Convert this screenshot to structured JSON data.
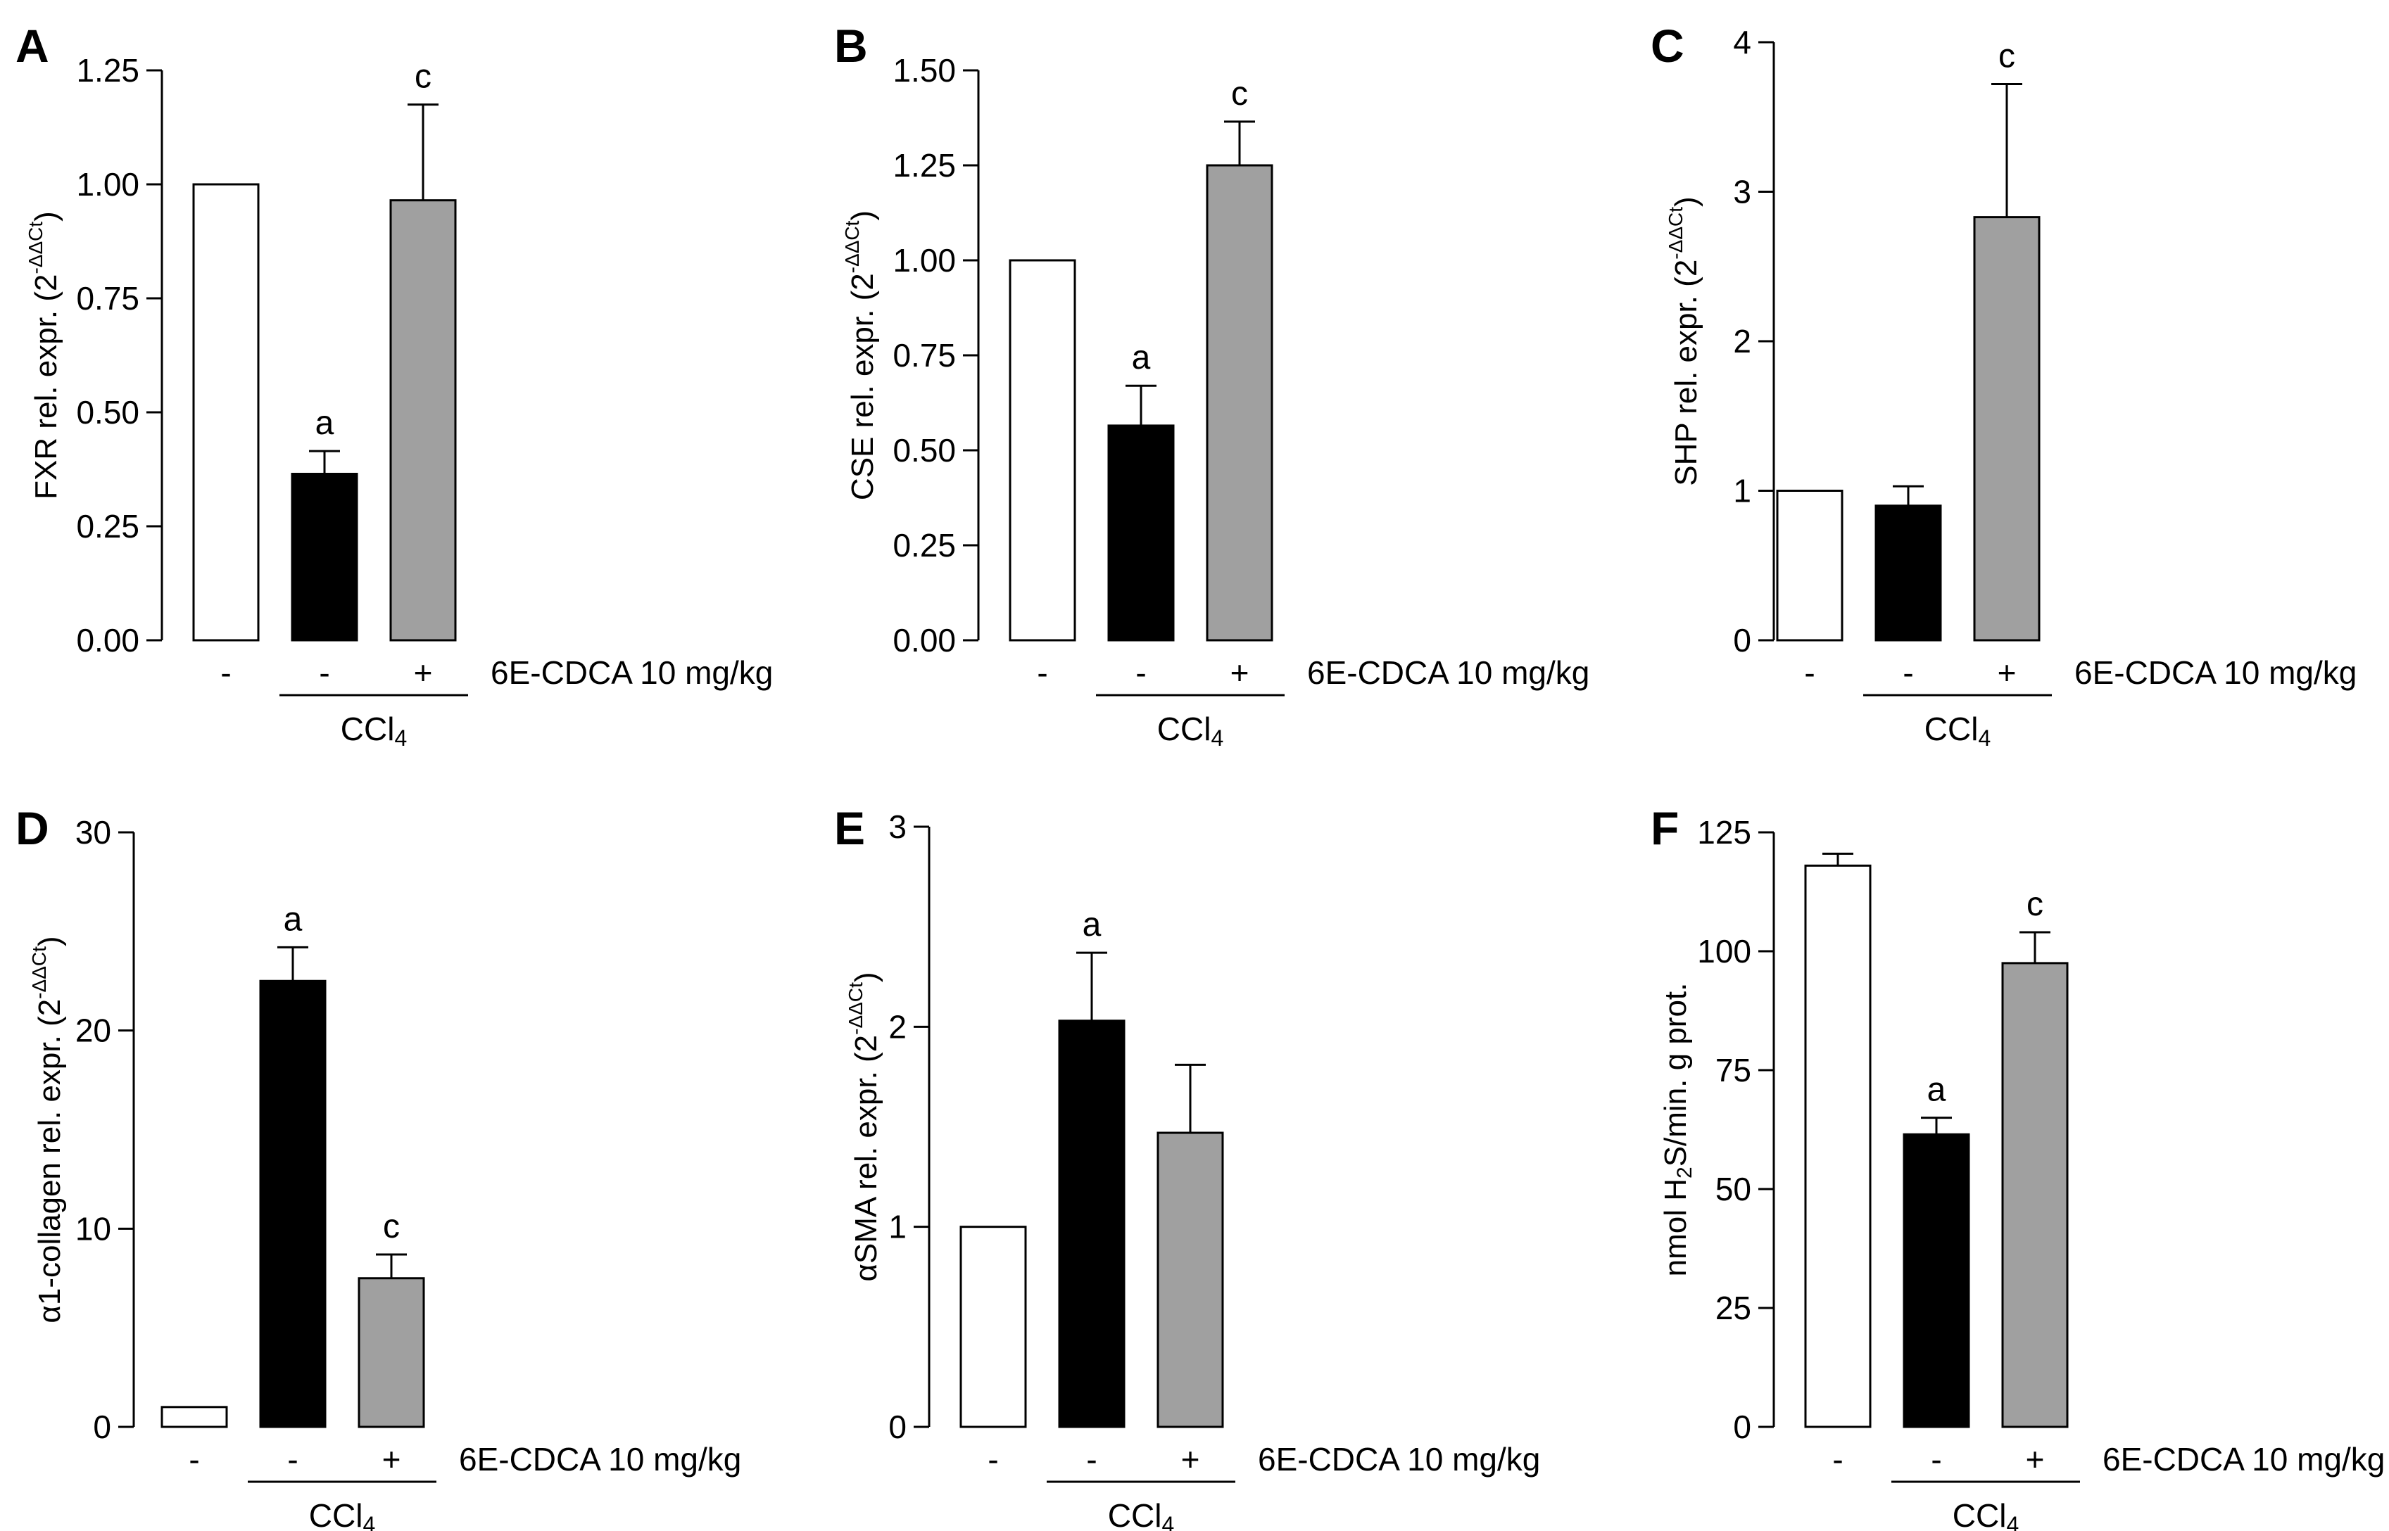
{
  "chart_data": [
    {
      "type": "bar",
      "panel": "A",
      "ylabel": "FXR rel. expr. (2",
      "ylabel_sup": "-ΔΔCt",
      "ylabel_end": ")",
      "ylim": [
        0,
        1.25
      ],
      "yticks": [
        "0.00",
        "0.25",
        "0.50",
        "0.75",
        "1.00",
        "1.25"
      ],
      "categories": [
        "-",
        "-",
        "+"
      ],
      "values": [
        1.0,
        0.365,
        0.965
      ],
      "errors": [
        0,
        0.05,
        0.21
      ],
      "sig": [
        "",
        "a",
        "c"
      ],
      "treatment_label": "6E-CDCA 10 mg/kg",
      "group_label": "CCl4"
    },
    {
      "type": "bar",
      "panel": "B",
      "ylabel": "CSE rel. expr. (2",
      "ylabel_sup": "-ΔΔCt",
      "ylabel_end": ")",
      "ylim": [
        0,
        1.5
      ],
      "yticks": [
        "0.00",
        "0.25",
        "0.50",
        "0.75",
        "1.00",
        "1.25",
        "1.50"
      ],
      "categories": [
        "-",
        "-",
        "+"
      ],
      "values": [
        1.0,
        0.565,
        1.25
      ],
      "errors": [
        0,
        0.105,
        0.115
      ],
      "sig": [
        "",
        "a",
        "c"
      ],
      "treatment_label": "6E-CDCA 10 mg/kg",
      "group_label": "CCl4"
    },
    {
      "type": "bar",
      "panel": "C",
      "ylabel": "SHP rel. expr. (2",
      "ylabel_sup": "-ΔΔCt",
      "ylabel_end": ")",
      "ylim": [
        0,
        4
      ],
      "yticks": [
        "0",
        "1",
        "2",
        "3",
        "4"
      ],
      "categories": [
        "-",
        "-",
        "+"
      ],
      "values": [
        1.0,
        0.9,
        2.83
      ],
      "errors": [
        0,
        0.13,
        0.89
      ],
      "sig": [
        "",
        "",
        "c"
      ],
      "treatment_label": "6E-CDCA 10 mg/kg",
      "group_label": "CCl4"
    },
    {
      "type": "bar",
      "panel": "D",
      "ylabel": "α1-collagen rel. expr. (2",
      "ylabel_sup": "-ΔΔCt",
      "ylabel_end": ")",
      "ylim": [
        0,
        30
      ],
      "yticks": [
        "0",
        "10",
        "20",
        "30"
      ],
      "categories": [
        "-",
        "-",
        "+"
      ],
      "values": [
        1.0,
        22.5,
        7.5
      ],
      "errors": [
        0,
        1.7,
        1.2
      ],
      "sig": [
        "",
        "a",
        "c"
      ],
      "treatment_label": "6E-CDCA 10 mg/kg",
      "group_label": "CCl4"
    },
    {
      "type": "bar",
      "panel": "E",
      "ylabel": "αSMA rel. expr. (2",
      "ylabel_sup": "-ΔΔCt",
      "ylabel_end": ")",
      "ylim": [
        0,
        3
      ],
      "yticks": [
        "0",
        "1",
        "2",
        "3"
      ],
      "categories": [
        "-",
        "-",
        "+"
      ],
      "values": [
        1.0,
        2.03,
        1.47
      ],
      "errors": [
        0,
        0.34,
        0.34
      ],
      "sig": [
        "",
        "a",
        ""
      ],
      "treatment_label": "6E-CDCA 10 mg/kg",
      "group_label": "CCl4"
    },
    {
      "type": "bar",
      "panel": "F",
      "ylabel": "nmol H2S/min. g prot.",
      "ylabel_sup": "",
      "ylabel_end": "",
      "ylim": [
        0,
        125
      ],
      "yticks": [
        "0",
        "25",
        "50",
        "75",
        "100",
        "125"
      ],
      "categories": [
        "-",
        "-",
        "+"
      ],
      "values": [
        118,
        61.5,
        97.5
      ],
      "errors": [
        2.5,
        3.5,
        6.5
      ],
      "sig": [
        "",
        "a",
        "c"
      ],
      "treatment_label": "6E-CDCA 10 mg/kg",
      "group_label": "CCl4"
    }
  ],
  "bar_colors": [
    "#ffffff",
    "#000000",
    "#a0a0a0"
  ]
}
